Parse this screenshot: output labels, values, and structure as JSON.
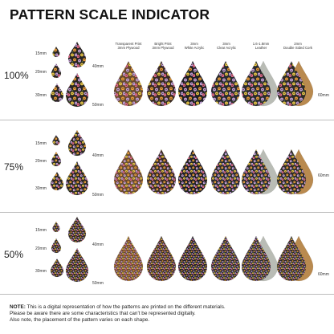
{
  "title": "PATTERN SCALE INDICATOR",
  "materials": [
    {
      "line1": "Transparent Print",
      "line2": "3mm Plywood",
      "fill": "#6b4a2f"
    },
    {
      "line1": "Bright Print",
      "line2": "3mm Plywood",
      "fill": "#3a2b24"
    },
    {
      "line1": "3mm",
      "line2": "White Acrylic",
      "fill": "#1f1f24"
    },
    {
      "line1": "3mm",
      "line2": "Clear Acrylic",
      "fill": "#2a2a30"
    },
    {
      "line1": "1.6-1.8mm",
      "line2": "Leather",
      "fill": "#2b2b2e"
    },
    {
      "line1": "2mm",
      "line2": "Double Sided Cork",
      "fill": "#2e2b28"
    }
  ],
  "sections": [
    {
      "label": "100%",
      "sizes": {
        "s15": "15mm",
        "s20": "20mm",
        "s30": "30mm",
        "s40": "40mm",
        "s50": "50mm"
      },
      "size_60": "60mm"
    },
    {
      "label": "75%",
      "sizes": {
        "s15": "15mm",
        "s20": "20mm",
        "s30": "30mm",
        "s40": "40mm",
        "s50": "50mm"
      },
      "size_60": "60mm"
    },
    {
      "label": "50%",
      "sizes": {
        "s15": "15mm",
        "s20": "20mm",
        "s30": "30mm",
        "s40": "40mm",
        "s50": "50mm"
      },
      "size_60": "60mm"
    }
  ],
  "note": {
    "bold": "NOTE:",
    "line1": " This is a digital representation of how the patterns are printed on the different materials.",
    "line2": "Please be aware there are some characteristics that can't be represented digitally.",
    "line3": "Also note, the placement of the pattern varies on each shape."
  },
  "colors": {
    "flower_purple": "#c9a6e3",
    "flower_orange": "#f0a23c",
    "flower_yellow": "#f4d24a",
    "flower_pink": "#e76b8e",
    "leaf_green": "#5e8a4c",
    "silver": "#b9bcb5",
    "cork": "#b98a4f",
    "plywood": "#a87440",
    "separator": "#bdbdbd"
  }
}
